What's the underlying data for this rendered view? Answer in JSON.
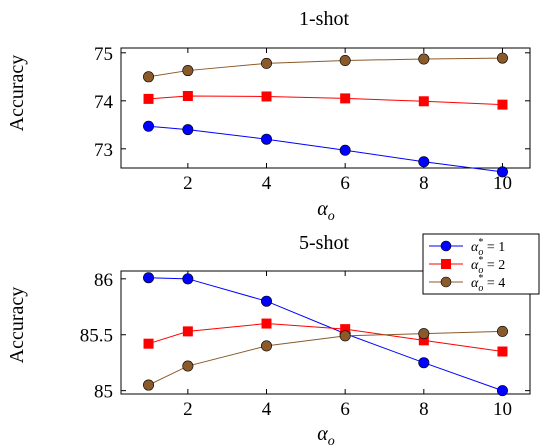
{
  "chart_data": [
    {
      "type": "line",
      "title": "1-shot",
      "xlabel": "α_o",
      "ylabel": "Accuracy",
      "x": [
        1,
        2,
        4,
        6,
        8,
        10
      ],
      "xticks": [
        "2",
        "4",
        "6",
        "8",
        "10"
      ],
      "yticks": [
        "73",
        "74",
        "75"
      ],
      "ylim": [
        72.6,
        75.1
      ],
      "xlim": [
        0.3,
        10.7
      ],
      "series": [
        {
          "name": "α*_o = 1",
          "color": "#0000ff",
          "marker": "circle",
          "values": [
            73.47,
            73.4,
            73.2,
            72.97,
            72.73,
            72.52
          ]
        },
        {
          "name": "α*_o = 2",
          "color": "#ff0000",
          "marker": "square",
          "values": [
            74.04,
            74.1,
            74.09,
            74.05,
            73.99,
            73.92
          ]
        },
        {
          "name": "α*_o = 4",
          "color": "#8b5a2b",
          "marker": "circle",
          "values": [
            74.5,
            74.63,
            74.78,
            74.84,
            74.87,
            74.89
          ]
        }
      ],
      "legend": "none",
      "grid": false
    },
    {
      "type": "line",
      "title": "5-shot",
      "xlabel": "α_o",
      "ylabel": "Accuracy",
      "x": [
        1,
        2,
        4,
        6,
        8,
        10
      ],
      "xticks": [
        "2",
        "4",
        "6",
        "8",
        "10"
      ],
      "yticks": [
        "85",
        "85.5",
        "86"
      ],
      "ylim": [
        84.97,
        86.07
      ],
      "xlim": [
        0.3,
        10.7
      ],
      "series": [
        {
          "name": "α*_o = 1",
          "color": "#0000ff",
          "marker": "circle",
          "values": [
            86.01,
            86.0,
            85.8,
            85.51,
            85.25,
            85.0
          ]
        },
        {
          "name": "α*_o = 2",
          "color": "#ff0000",
          "marker": "square",
          "values": [
            85.42,
            85.53,
            85.6,
            85.55,
            85.45,
            85.35
          ]
        },
        {
          "name": "α*_o = 4",
          "color": "#8b5a2b",
          "marker": "circle",
          "values": [
            85.05,
            85.22,
            85.4,
            85.49,
            85.51,
            85.53
          ]
        }
      ],
      "legend": "top-right",
      "grid": false
    }
  ],
  "legend_entries": [
    {
      "base": "α",
      "sup": "*",
      "sub": "o",
      "rhs": " = 1"
    },
    {
      "base": "α",
      "sup": "*",
      "sub": "o",
      "rhs": " = 2"
    },
    {
      "base": "α",
      "sup": "*",
      "sub": "o",
      "rhs": " = 4"
    }
  ]
}
